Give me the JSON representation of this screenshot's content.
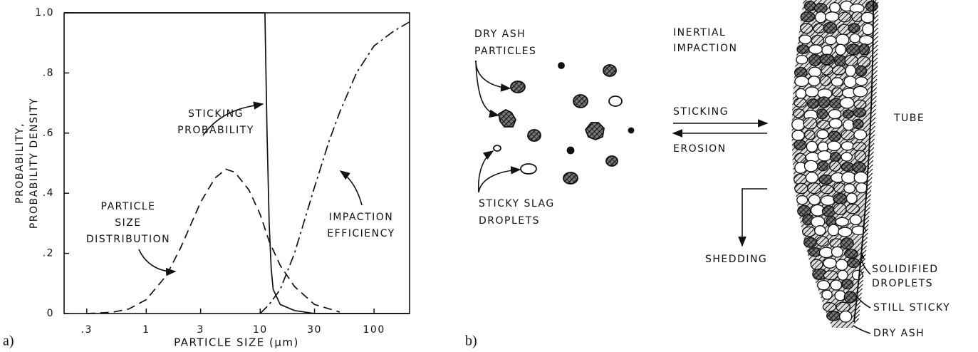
{
  "chart_data": {
    "type": "line",
    "xlabel": "PARTICLE SIZE (μm)",
    "ylabel_lines": [
      "PROBABILITY,",
      "PROBABILITY DENSITY"
    ],
    "xscale": "log",
    "xlim": [
      0.19,
      205
    ],
    "ylim": [
      0,
      1
    ],
    "xticks": [
      {
        "value": 0.3,
        "label": ".3"
      },
      1,
      3,
      10,
      30,
      100
    ],
    "yticks": [
      0,
      {
        "value": 0.2,
        "label": ".2"
      },
      {
        "value": 0.4,
        "label": ".4"
      },
      {
        "value": 0.6,
        "label": ".6"
      },
      {
        "value": 0.8,
        "label": ".8"
      },
      {
        "value": 1.0,
        "label": "1.0"
      }
    ],
    "grid": false,
    "series": [
      {
        "label_lines": [
          "PARTICLE",
          "SIZE",
          "DISTRIBUTION"
        ],
        "color": "#111",
        "style": "dashed",
        "x": [
          0.3,
          0.5,
          0.7,
          1,
          1.5,
          2,
          3,
          4,
          5,
          6,
          8,
          10,
          12,
          15,
          20,
          30,
          50
        ],
        "values": [
          0.0,
          0.004,
          0.015,
          0.046,
          0.126,
          0.218,
          0.37,
          0.45,
          0.48,
          0.47,
          0.41,
          0.33,
          0.24,
          0.16,
          0.09,
          0.03,
          0.005
        ]
      },
      {
        "label_lines": [
          "STICKING",
          "PROBABILITY"
        ],
        "color": "#111",
        "style": "solid",
        "x": [
          0.19,
          11,
          11.5,
          12,
          12.5,
          13,
          15,
          20,
          30,
          205
        ],
        "values": [
          1,
          1,
          0.6,
          0.3,
          0.15,
          0.08,
          0.03,
          0.01,
          0,
          0
        ]
      },
      {
        "label_lines": [
          "IMPACTION",
          "EFFICIENCY"
        ],
        "color": "#111",
        "style": "dashdot",
        "x": [
          10,
          12,
          15,
          20,
          30,
          40,
          50,
          70,
          100,
          150,
          205
        ],
        "values": [
          0,
          0.03,
          0.08,
          0.2,
          0.42,
          0.57,
          0.67,
          0.8,
          0.89,
          0.94,
          0.97
        ]
      }
    ]
  },
  "panel_labels": [
    "a)",
    "b)"
  ],
  "diagram": {
    "dry_ash_particles": [
      "DRY ASH",
      "PARTICLES"
    ],
    "inertial_impaction": [
      "INERTIAL",
      "IMPACTION"
    ],
    "sticking": "STICKING",
    "erosion": "EROSION",
    "sticky_slag_droplets": [
      "STICKY SLAG",
      "DROPLETS"
    ],
    "shedding": "SHEDDING",
    "tube": "TUBE",
    "solidified_droplets": [
      "SOLIDIFIED",
      "DROPLETS"
    ],
    "still_sticky": "STILL STICKY",
    "dry_ash": "DRY ASH"
  }
}
